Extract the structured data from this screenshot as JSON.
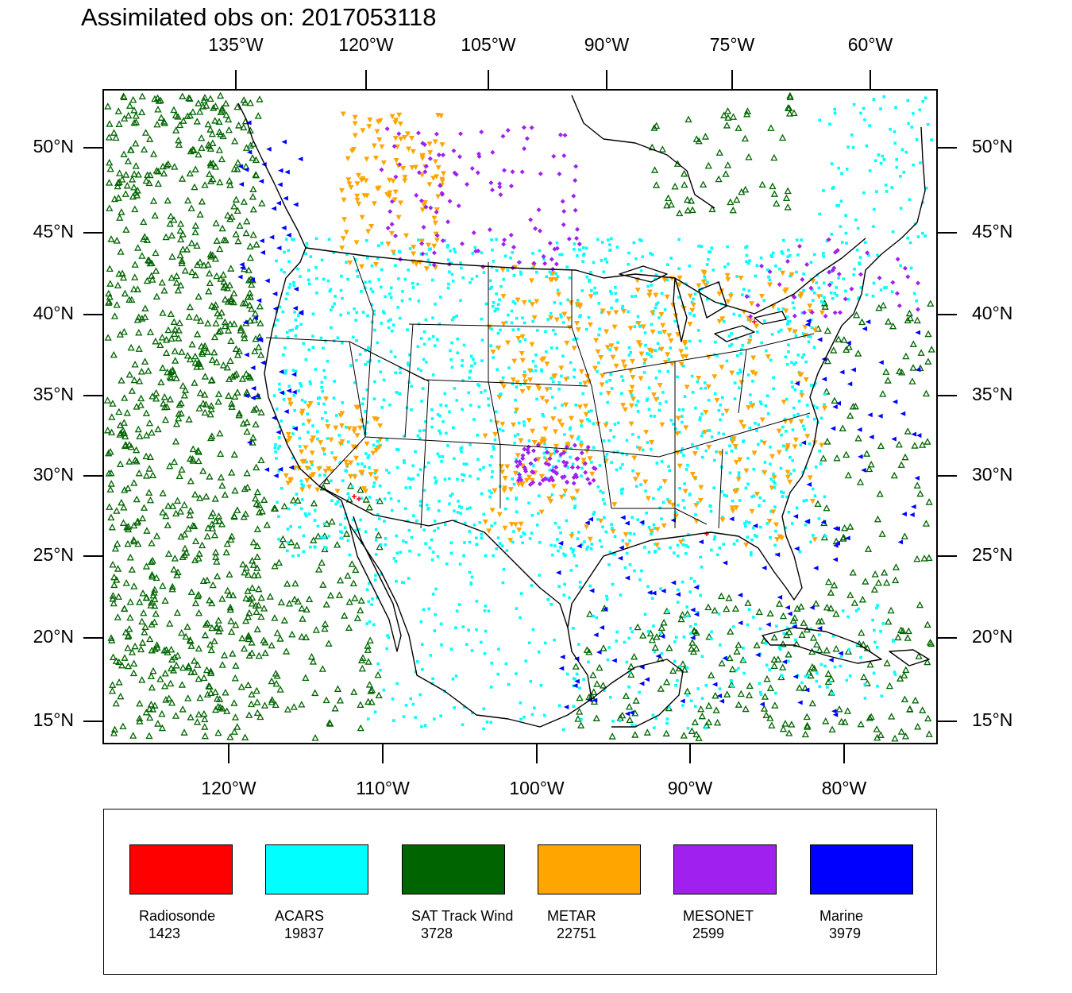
{
  "title": "Assimilated obs on: 2017053118",
  "axes": {
    "top_ticks": [
      "135°W",
      "120°W",
      "105°W",
      "90°W",
      "75°W",
      "60°W"
    ],
    "bottom_ticks": [
      "120°W",
      "110°W",
      "100°W",
      "90°W",
      "80°W"
    ],
    "left_ticks": [
      "50°N",
      "45°N",
      "40°N",
      "35°N",
      "30°N",
      "25°N",
      "20°N",
      "15°N"
    ],
    "right_ticks": [
      "50°N",
      "45°N",
      "40°N",
      "35°N",
      "30°N",
      "25°N",
      "20°N",
      "15°N"
    ]
  },
  "legend": {
    "items": [
      {
        "name": "Radiosonde",
        "count": "1423",
        "color": "#ff0000",
        "symbol": "cross"
      },
      {
        "name": "ACARS",
        "count": "19837",
        "color": "#00ffff",
        "symbol": "square"
      },
      {
        "name": "SAT Track Wind",
        "count": "3728",
        "color": "#006400",
        "symbol": "triangle-up"
      },
      {
        "name": "METAR",
        "count": "22751",
        "color": "#ffa500",
        "symbol": "triangle-down"
      },
      {
        "name": "MESONET",
        "count": "2599",
        "color": "#a020f0",
        "symbol": "diamond"
      },
      {
        "name": "Marine",
        "count": "3979",
        "color": "#0000ff",
        "symbol": "triangle-left"
      }
    ]
  }
}
